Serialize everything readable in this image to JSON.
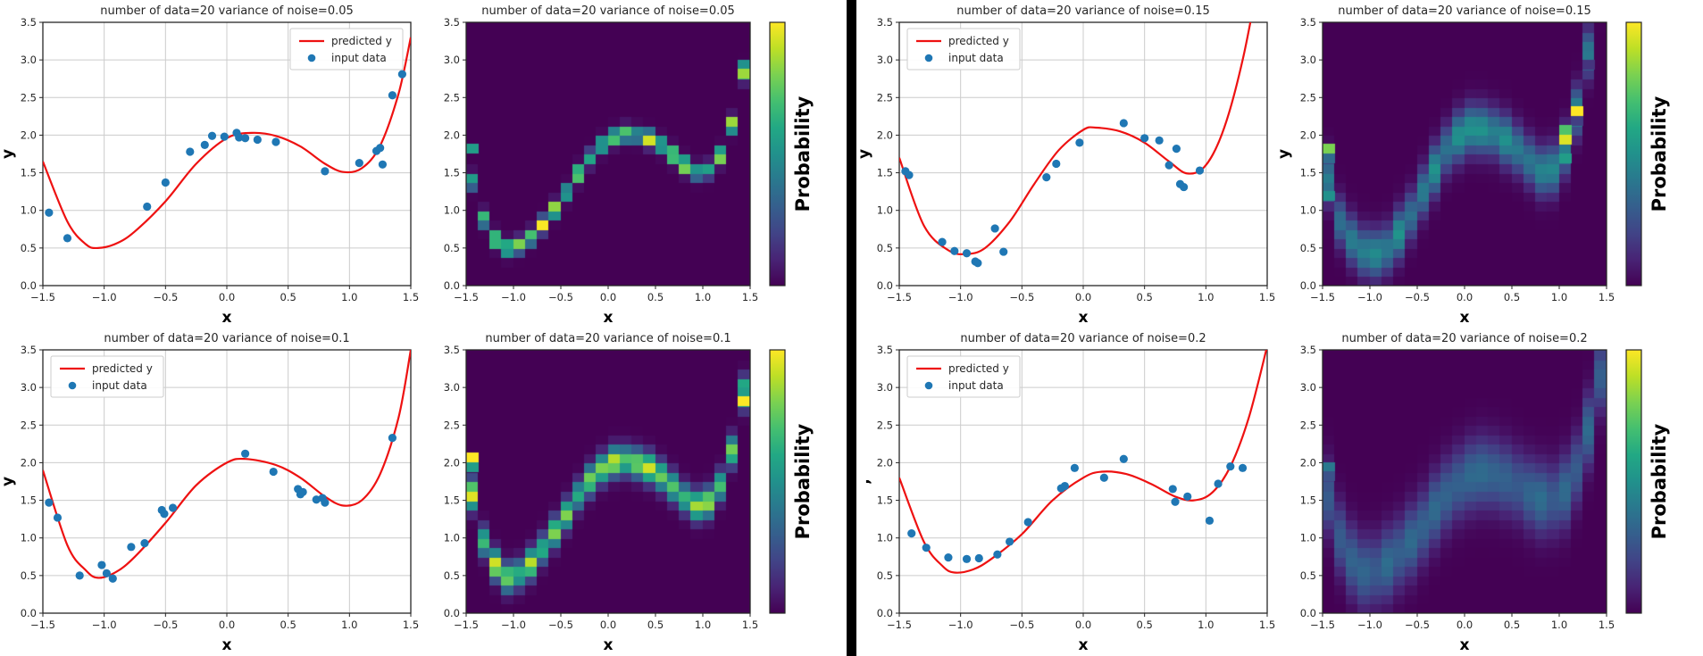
{
  "figure": {
    "background": "#ffffff",
    "divider_color": "#000000",
    "text_color": "#262626",
    "spine_color": "#262626",
    "grid_color": "#cccccc",
    "curve_color": "#ee1111",
    "dot_color": "#1f77b4",
    "colormap": "viridis",
    "viridis_stops": [
      "#440154",
      "#482475",
      "#414487",
      "#355f8d",
      "#2a788e",
      "#21918c",
      "#22a884",
      "#44bf70",
      "#7ad151",
      "#bddf26",
      "#fde725"
    ]
  },
  "legend": {
    "line_label": "predicted y",
    "dot_label": "input data"
  },
  "colorbar": {
    "label": "Probability"
  },
  "axes": {
    "xlabel": "x",
    "ylabel": "y",
    "xlim": [
      -1.5,
      1.5
    ],
    "ylim": [
      0,
      3.5
    ],
    "xticks": [
      -1.5,
      -1.0,
      -0.5,
      0.0,
      0.5,
      1.0,
      1.5
    ],
    "yticks": [
      0.0,
      0.5,
      1.0,
      1.5,
      2.0,
      2.5,
      3.0,
      3.5
    ]
  },
  "chart_data": [
    {
      "id": "scatter-noise-005",
      "type": "scatter",
      "half": "left",
      "row": 0,
      "col": 0,
      "title": "number of data=20 variance of noise=0.05",
      "xlabel": "x",
      "ylabel": "y",
      "legend_position": "upper-right",
      "curve": [
        [
          -1.5,
          1.65
        ],
        [
          -1.3,
          0.85
        ],
        [
          -1.15,
          0.55
        ],
        [
          -1.05,
          0.5
        ],
        [
          -0.9,
          0.56
        ],
        [
          -0.75,
          0.72
        ],
        [
          -0.5,
          1.12
        ],
        [
          -0.25,
          1.62
        ],
        [
          0,
          1.96
        ],
        [
          0.2,
          2.03
        ],
        [
          0.4,
          1.99
        ],
        [
          0.6,
          1.85
        ],
        [
          0.8,
          1.62
        ],
        [
          0.95,
          1.51
        ],
        [
          1.1,
          1.56
        ],
        [
          1.25,
          1.86
        ],
        [
          1.4,
          2.55
        ],
        [
          1.5,
          3.3
        ]
      ],
      "points": [
        [
          -1.45,
          0.97
        ],
        [
          -1.3,
          0.63
        ],
        [
          -0.65,
          1.05
        ],
        [
          -0.5,
          1.37
        ],
        [
          -0.3,
          1.78
        ],
        [
          -0.18,
          1.87
        ],
        [
          -0.12,
          1.99
        ],
        [
          -0.02,
          1.98
        ],
        [
          0.08,
          2.03
        ],
        [
          0.1,
          1.97
        ],
        [
          0.15,
          1.96
        ],
        [
          0.25,
          1.94
        ],
        [
          0.4,
          1.91
        ],
        [
          0.8,
          1.52
        ],
        [
          1.08,
          1.63
        ],
        [
          1.22,
          1.79
        ],
        [
          1.25,
          1.83
        ],
        [
          1.27,
          1.61
        ],
        [
          1.35,
          2.53
        ],
        [
          1.43,
          2.81
        ]
      ]
    },
    {
      "id": "heatmap-noise-005",
      "type": "heatmap",
      "half": "left",
      "row": 0,
      "col": 1,
      "title": "number of data=20 variance of noise=0.05",
      "xlabel": "x",
      "ylabel": "",
      "grid_cols": 24,
      "grid_rows": 28,
      "sigma": 0.07,
      "peak": 1.0,
      "jitter": [
        0.55,
        1.2
      ],
      "colorbar_label": "Probability",
      "curve": [
        [
          -1.5,
          1.65
        ],
        [
          -1.3,
          0.85
        ],
        [
          -1.15,
          0.55
        ],
        [
          -1.05,
          0.5
        ],
        [
          -0.9,
          0.56
        ],
        [
          -0.75,
          0.72
        ],
        [
          -0.5,
          1.12
        ],
        [
          -0.25,
          1.62
        ],
        [
          0,
          1.96
        ],
        [
          0.2,
          2.03
        ],
        [
          0.4,
          1.99
        ],
        [
          0.6,
          1.85
        ],
        [
          0.8,
          1.62
        ],
        [
          0.95,
          1.51
        ],
        [
          1.1,
          1.56
        ],
        [
          1.25,
          1.86
        ],
        [
          1.4,
          2.55
        ],
        [
          1.5,
          3.3
        ]
      ],
      "bright_cells": [
        [
          -1.48,
          1.76,
          0.55
        ],
        [
          1.44,
          2.92,
          0.5
        ],
        [
          1.44,
          2.78,
          0.85
        ]
      ]
    },
    {
      "id": "scatter-noise-010",
      "type": "scatter",
      "half": "left",
      "row": 1,
      "col": 0,
      "title": "number of data=20 variance of noise=0.1",
      "xlabel": "x",
      "ylabel": "y",
      "legend_position": "upper-left",
      "curve": [
        [
          -1.5,
          1.9
        ],
        [
          -1.3,
          0.9
        ],
        [
          -1.15,
          0.57
        ],
        [
          -1.05,
          0.47
        ],
        [
          -0.9,
          0.55
        ],
        [
          -0.75,
          0.75
        ],
        [
          -0.5,
          1.2
        ],
        [
          -0.25,
          1.7
        ],
        [
          0,
          2.0
        ],
        [
          0.15,
          2.05
        ],
        [
          0.4,
          1.97
        ],
        [
          0.6,
          1.8
        ],
        [
          0.8,
          1.55
        ],
        [
          0.95,
          1.43
        ],
        [
          1.1,
          1.5
        ],
        [
          1.25,
          1.85
        ],
        [
          1.4,
          2.6
        ],
        [
          1.5,
          3.5
        ]
      ],
      "points": [
        [
          -1.45,
          1.47
        ],
        [
          -1.38,
          1.27
        ],
        [
          -1.2,
          0.5
        ],
        [
          -1.02,
          0.64
        ],
        [
          -0.98,
          0.53
        ],
        [
          -0.93,
          0.46
        ],
        [
          -0.78,
          0.88
        ],
        [
          -0.67,
          0.93
        ],
        [
          -0.53,
          1.37
        ],
        [
          -0.51,
          1.32
        ],
        [
          -0.44,
          1.4
        ],
        [
          0.15,
          2.12
        ],
        [
          0.38,
          1.88
        ],
        [
          0.58,
          1.65
        ],
        [
          0.6,
          1.58
        ],
        [
          0.62,
          1.61
        ],
        [
          0.73,
          1.51
        ],
        [
          0.78,
          1.53
        ],
        [
          0.8,
          1.47
        ],
        [
          1.35,
          2.33
        ]
      ]
    },
    {
      "id": "heatmap-noise-010",
      "type": "heatmap",
      "half": "left",
      "row": 1,
      "col": 1,
      "title": "number of data=20 variance of noise=0.1",
      "xlabel": "x",
      "ylabel": "",
      "grid_cols": 24,
      "grid_rows": 28,
      "sigma": 0.13,
      "peak": 0.85,
      "jitter": [
        0.7,
        1.15
      ],
      "colorbar_label": "Probability",
      "curve": [
        [
          -1.5,
          1.9
        ],
        [
          -1.3,
          0.9
        ],
        [
          -1.15,
          0.57
        ],
        [
          -1.05,
          0.47
        ],
        [
          -0.9,
          0.55
        ],
        [
          -0.75,
          0.75
        ],
        [
          -0.5,
          1.2
        ],
        [
          -0.25,
          1.7
        ],
        [
          0,
          2.0
        ],
        [
          0.15,
          2.05
        ],
        [
          0.4,
          1.97
        ],
        [
          0.6,
          1.8
        ],
        [
          0.8,
          1.55
        ],
        [
          0.95,
          1.43
        ],
        [
          1.1,
          1.5
        ],
        [
          1.25,
          1.85
        ],
        [
          1.4,
          2.6
        ],
        [
          1.5,
          3.5
        ]
      ],
      "bright_cells": [
        [
          -1.48,
          2.0,
          1.0
        ],
        [
          -1.48,
          1.9,
          0.55
        ],
        [
          1.44,
          2.9,
          0.55
        ],
        [
          1.44,
          2.77,
          1.0
        ]
      ]
    },
    {
      "id": "scatter-noise-015",
      "type": "scatter",
      "half": "right",
      "row": 0,
      "col": 0,
      "title": "number of data=20 variance of noise=0.15",
      "xlabel": "x",
      "ylabel": "y",
      "legend_position": "upper-left",
      "curve": [
        [
          -1.5,
          1.7
        ],
        [
          -1.3,
          0.8
        ],
        [
          -1.1,
          0.47
        ],
        [
          -0.95,
          0.42
        ],
        [
          -0.8,
          0.5
        ],
        [
          -0.6,
          0.85
        ],
        [
          -0.4,
          1.35
        ],
        [
          -0.2,
          1.8
        ],
        [
          0,
          2.07
        ],
        [
          0.1,
          2.1
        ],
        [
          0.3,
          2.05
        ],
        [
          0.5,
          1.9
        ],
        [
          0.7,
          1.65
        ],
        [
          0.85,
          1.49
        ],
        [
          1,
          1.6
        ],
        [
          1.15,
          2.1
        ],
        [
          1.3,
          3.0
        ],
        [
          1.42,
          4.0
        ]
      ],
      "points": [
        [
          -1.45,
          1.52
        ],
        [
          -1.42,
          1.47
        ],
        [
          -1.15,
          0.58
        ],
        [
          -1.05,
          0.46
        ],
        [
          -0.95,
          0.43
        ],
        [
          -0.88,
          0.32
        ],
        [
          -0.86,
          0.3
        ],
        [
          -0.72,
          0.76
        ],
        [
          -0.65,
          0.45
        ],
        [
          -0.3,
          1.44
        ],
        [
          -0.22,
          1.62
        ],
        [
          -0.03,
          1.9
        ],
        [
          0.33,
          2.16
        ],
        [
          0.5,
          1.96
        ],
        [
          0.62,
          1.93
        ],
        [
          0.7,
          1.6
        ],
        [
          0.76,
          1.82
        ],
        [
          0.79,
          1.35
        ],
        [
          0.82,
          1.31
        ],
        [
          0.95,
          1.53
        ]
      ]
    },
    {
      "id": "heatmap-noise-015",
      "type": "heatmap",
      "half": "right",
      "row": 0,
      "col": 1,
      "title": "number of data=20 variance of noise=0.15",
      "xlabel": "x",
      "ylabel": "y",
      "grid_cols": 24,
      "grid_rows": 28,
      "sigma": 0.22,
      "peak": 0.45,
      "jitter": [
        0.8,
        1.15
      ],
      "colorbar_label": "Probability",
      "curve": [
        [
          -1.5,
          1.7
        ],
        [
          -1.3,
          0.8
        ],
        [
          -1.1,
          0.47
        ],
        [
          -0.95,
          0.42
        ],
        [
          -0.8,
          0.5
        ],
        [
          -0.6,
          0.85
        ],
        [
          -0.4,
          1.35
        ],
        [
          -0.2,
          1.8
        ],
        [
          0,
          2.07
        ],
        [
          0.1,
          2.1
        ],
        [
          0.3,
          2.05
        ],
        [
          0.5,
          1.9
        ],
        [
          0.7,
          1.65
        ],
        [
          0.85,
          1.49
        ],
        [
          1,
          1.6
        ],
        [
          1.15,
          2.1
        ],
        [
          1.3,
          3.0
        ],
        [
          1.42,
          4.0
        ]
      ],
      "bright_cells": [
        [
          -1.48,
          1.77,
          0.8
        ],
        [
          -1.48,
          1.63,
          0.35
        ],
        [
          -1.44,
          1.15,
          0.5
        ],
        [
          1.17,
          2.36,
          1.0
        ],
        [
          1.14,
          2.2,
          0.18
        ],
        [
          1.1,
          2.0,
          0.72
        ],
        [
          1.1,
          1.88,
          0.95
        ],
        [
          1.06,
          1.66,
          0.55
        ],
        [
          1.27,
          2.95,
          0.15
        ]
      ]
    },
    {
      "id": "scatter-noise-020",
      "type": "scatter",
      "half": "right",
      "row": 1,
      "col": 0,
      "title": "number of data=20 variance of noise=0.2",
      "xlabel": "x",
      "ylabel": ",",
      "legend_position": "upper-left",
      "curve": [
        [
          -1.5,
          1.8
        ],
        [
          -1.3,
          0.95
        ],
        [
          -1.15,
          0.63
        ],
        [
          -1.05,
          0.54
        ],
        [
          -0.9,
          0.58
        ],
        [
          -0.75,
          0.72
        ],
        [
          -0.5,
          1.05
        ],
        [
          -0.25,
          1.5
        ],
        [
          0,
          1.8
        ],
        [
          0.15,
          1.88
        ],
        [
          0.35,
          1.85
        ],
        [
          0.55,
          1.72
        ],
        [
          0.75,
          1.55
        ],
        [
          0.9,
          1.5
        ],
        [
          1.05,
          1.6
        ],
        [
          1.2,
          1.95
        ],
        [
          1.35,
          2.6
        ],
        [
          1.5,
          3.55
        ]
      ],
      "points": [
        [
          -1.4,
          1.06
        ],
        [
          -1.28,
          0.87
        ],
        [
          -1.1,
          0.74
        ],
        [
          -0.95,
          0.72
        ],
        [
          -0.85,
          0.73
        ],
        [
          -0.7,
          0.78
        ],
        [
          -0.6,
          0.95
        ],
        [
          -0.45,
          1.21
        ],
        [
          -0.18,
          1.66
        ],
        [
          -0.15,
          1.69
        ],
        [
          -0.07,
          1.93
        ],
        [
          0.17,
          1.8
        ],
        [
          0.33,
          2.05
        ],
        [
          0.73,
          1.65
        ],
        [
          0.75,
          1.48
        ],
        [
          0.85,
          1.55
        ],
        [
          1.03,
          1.23
        ],
        [
          1.1,
          1.72
        ],
        [
          1.2,
          1.95
        ],
        [
          1.3,
          1.93
        ]
      ]
    },
    {
      "id": "heatmap-noise-020",
      "type": "heatmap",
      "half": "right",
      "row": 1,
      "col": 1,
      "title": "number of data=20 variance of noise=0.2",
      "xlabel": "x",
      "ylabel": "",
      "grid_cols": 24,
      "grid_rows": 28,
      "sigma": 0.32,
      "peak": 0.33,
      "jitter": [
        0.85,
        1.1
      ],
      "colorbar_label": "Probability",
      "curve": [
        [
          -1.5,
          1.8
        ],
        [
          -1.3,
          0.95
        ],
        [
          -1.15,
          0.63
        ],
        [
          -1.05,
          0.54
        ],
        [
          -0.9,
          0.58
        ],
        [
          -0.75,
          0.72
        ],
        [
          -0.5,
          1.05
        ],
        [
          -0.25,
          1.5
        ],
        [
          0,
          1.8
        ],
        [
          0.15,
          1.88
        ],
        [
          0.35,
          1.85
        ],
        [
          0.55,
          1.72
        ],
        [
          0.75,
          1.55
        ],
        [
          0.9,
          1.5
        ],
        [
          1.05,
          1.6
        ],
        [
          1.2,
          1.95
        ],
        [
          1.35,
          2.6
        ],
        [
          1.5,
          3.55
        ]
      ],
      "bright_cells": [
        [
          -1.48,
          1.95,
          0.4
        ],
        [
          -1.48,
          1.86,
          0.65
        ],
        [
          -1.48,
          1.76,
          0.25
        ]
      ]
    }
  ]
}
